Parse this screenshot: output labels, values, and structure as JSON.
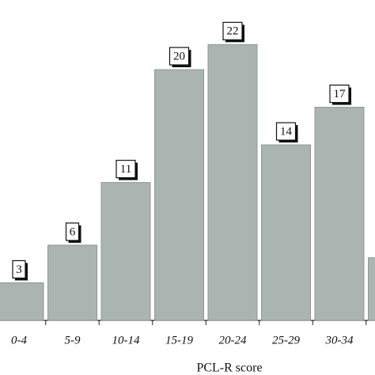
{
  "chart_data": {
    "type": "bar",
    "x_label": "PCL-R score",
    "categories": [
      "0-4",
      "5-9",
      "10-14",
      "15-19",
      "20-24",
      "25-29",
      "30-34",
      null
    ],
    "values": [
      3,
      6,
      11,
      20,
      22,
      14,
      17,
      5
    ],
    "value_labels": [
      "3",
      "6",
      "11",
      "20",
      "22",
      "14",
      "17",
      null
    ],
    "color": "#aab4b1"
  }
}
